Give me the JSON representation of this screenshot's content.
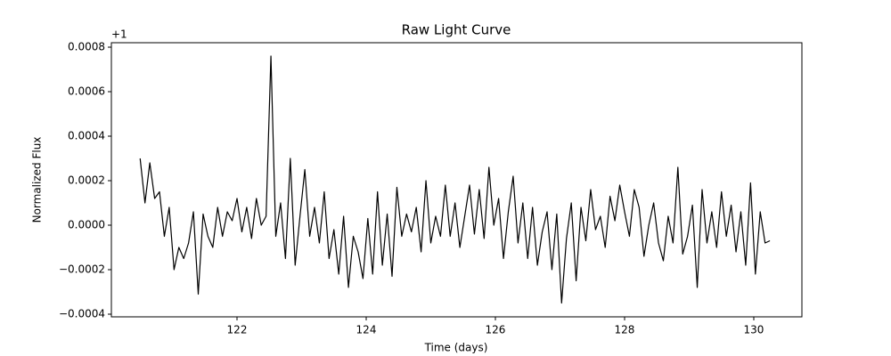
{
  "chart_data": {
    "type": "line",
    "title": "Raw Light Curve",
    "x_label": "Time (days)",
    "y_label": "Normalized Flux",
    "y_offset_label": "+1",
    "x": [
      120.5,
      120.575,
      120.65,
      120.725,
      120.8,
      120.875,
      120.95,
      121.025,
      121.1,
      121.175,
      121.25,
      121.325,
      121.4,
      121.475,
      121.55,
      121.625,
      121.7,
      121.775,
      121.85,
      121.925,
      122,
      122.075,
      122.15,
      122.225,
      122.3,
      122.375,
      122.45,
      122.525,
      122.6,
      122.675,
      122.75,
      122.825,
      122.9,
      122.975,
      123.05,
      123.125,
      123.2,
      123.275,
      123.35,
      123.425,
      123.5,
      123.575,
      123.65,
      123.725,
      123.8,
      123.875,
      123.95,
      124.025,
      124.1,
      124.175,
      124.25,
      124.325,
      124.4,
      124.475,
      124.55,
      124.625,
      124.7,
      124.775,
      124.85,
      124.925,
      125,
      125.075,
      125.15,
      125.225,
      125.3,
      125.375,
      125.45,
      125.525,
      125.6,
      125.675,
      125.75,
      125.825,
      125.9,
      125.975,
      126.05,
      126.125,
      126.2,
      126.275,
      126.35,
      126.425,
      126.5,
      126.575,
      126.65,
      126.725,
      126.8,
      126.875,
      126.95,
      127.025,
      127.1,
      127.175,
      127.25,
      127.325,
      127.4,
      127.475,
      127.55,
      127.625,
      127.7,
      127.775,
      127.85,
      127.925,
      128,
      128.075,
      128.15,
      128.225,
      128.3,
      128.375,
      128.45,
      128.525,
      128.6,
      128.675,
      128.75,
      128.825,
      128.9,
      128.975,
      129.05,
      129.125,
      129.2,
      129.275,
      129.35,
      129.425,
      129.5,
      129.575,
      129.65,
      129.725,
      129.8,
      129.875,
      129.95,
      130.025,
      130.1,
      130.175,
      130.25
    ],
    "series": [
      {
        "name": "Flux",
        "color": "#000000",
        "values": [
          0.0003,
          0.0001,
          0.00028,
          0.00012,
          0.00015,
          -5e-05,
          8e-05,
          -0.0002,
          -0.0001,
          -0.00015,
          -8e-05,
          6e-05,
          -0.00031,
          5e-05,
          -5e-05,
          -0.0001,
          8e-05,
          -5e-05,
          6e-05,
          2e-05,
          0.00012,
          -3e-05,
          8e-05,
          -6e-05,
          0.00012,
          0,
          4e-05,
          0.00076,
          -5e-05,
          0.0001,
          -0.00015,
          0.0003,
          -0.00018,
          4e-05,
          0.00025,
          -5e-05,
          8e-05,
          -8e-05,
          0.00015,
          -0.00015,
          -2e-05,
          -0.00022,
          4e-05,
          -0.00028,
          -5e-05,
          -0.00012,
          -0.00024,
          3e-05,
          -0.00022,
          0.00015,
          -0.00018,
          5e-05,
          -0.00023,
          0.00017,
          -5e-05,
          5e-05,
          -3e-05,
          8e-05,
          -0.00012,
          0.0002,
          -8e-05,
          4e-05,
          -5e-05,
          0.00018,
          -5e-05,
          0.0001,
          -0.0001,
          4e-05,
          0.00018,
          -4e-05,
          0.00016,
          -6e-05,
          0.00026,
          0,
          0.00012,
          -0.00015,
          6e-05,
          0.00022,
          -8e-05,
          0.0001,
          -0.00015,
          8e-05,
          -0.00018,
          -3e-05,
          6e-05,
          -0.0002,
          5e-05,
          -0.00035,
          -6e-05,
          0.0001,
          -0.00025,
          8e-05,
          -7e-05,
          0.00016,
          -2e-05,
          4e-05,
          -0.0001,
          0.00013,
          2e-05,
          0.00018,
          6e-05,
          -5e-05,
          0.00016,
          8e-05,
          -0.00014,
          0,
          0.0001,
          -8e-05,
          -0.00016,
          4e-05,
          -8e-05,
          0.00026,
          -0.00013,
          -5e-05,
          9e-05,
          -0.00028,
          0.00016,
          -8e-05,
          6e-05,
          -0.0001,
          0.00015,
          -5e-05,
          9e-05,
          -0.00012,
          6e-05,
          -0.00018,
          0.00019,
          -0.00022,
          6e-05,
          -8e-05,
          -7e-05
        ]
      }
    ],
    "xlim": [
      120.055,
      130.745
    ],
    "ylim": [
      -0.000412,
      0.00082
    ],
    "xticks": [
      122,
      124,
      126,
      128,
      130
    ],
    "yticks": [
      {
        "value": -0.0004,
        "label": "−0.0004"
      },
      {
        "value": -0.0002,
        "label": "−0.0002"
      },
      {
        "value": 0,
        "label": "0.0000"
      },
      0.0002,
      0.0004,
      0.0006,
      0.0008
    ],
    "grid": false
  }
}
